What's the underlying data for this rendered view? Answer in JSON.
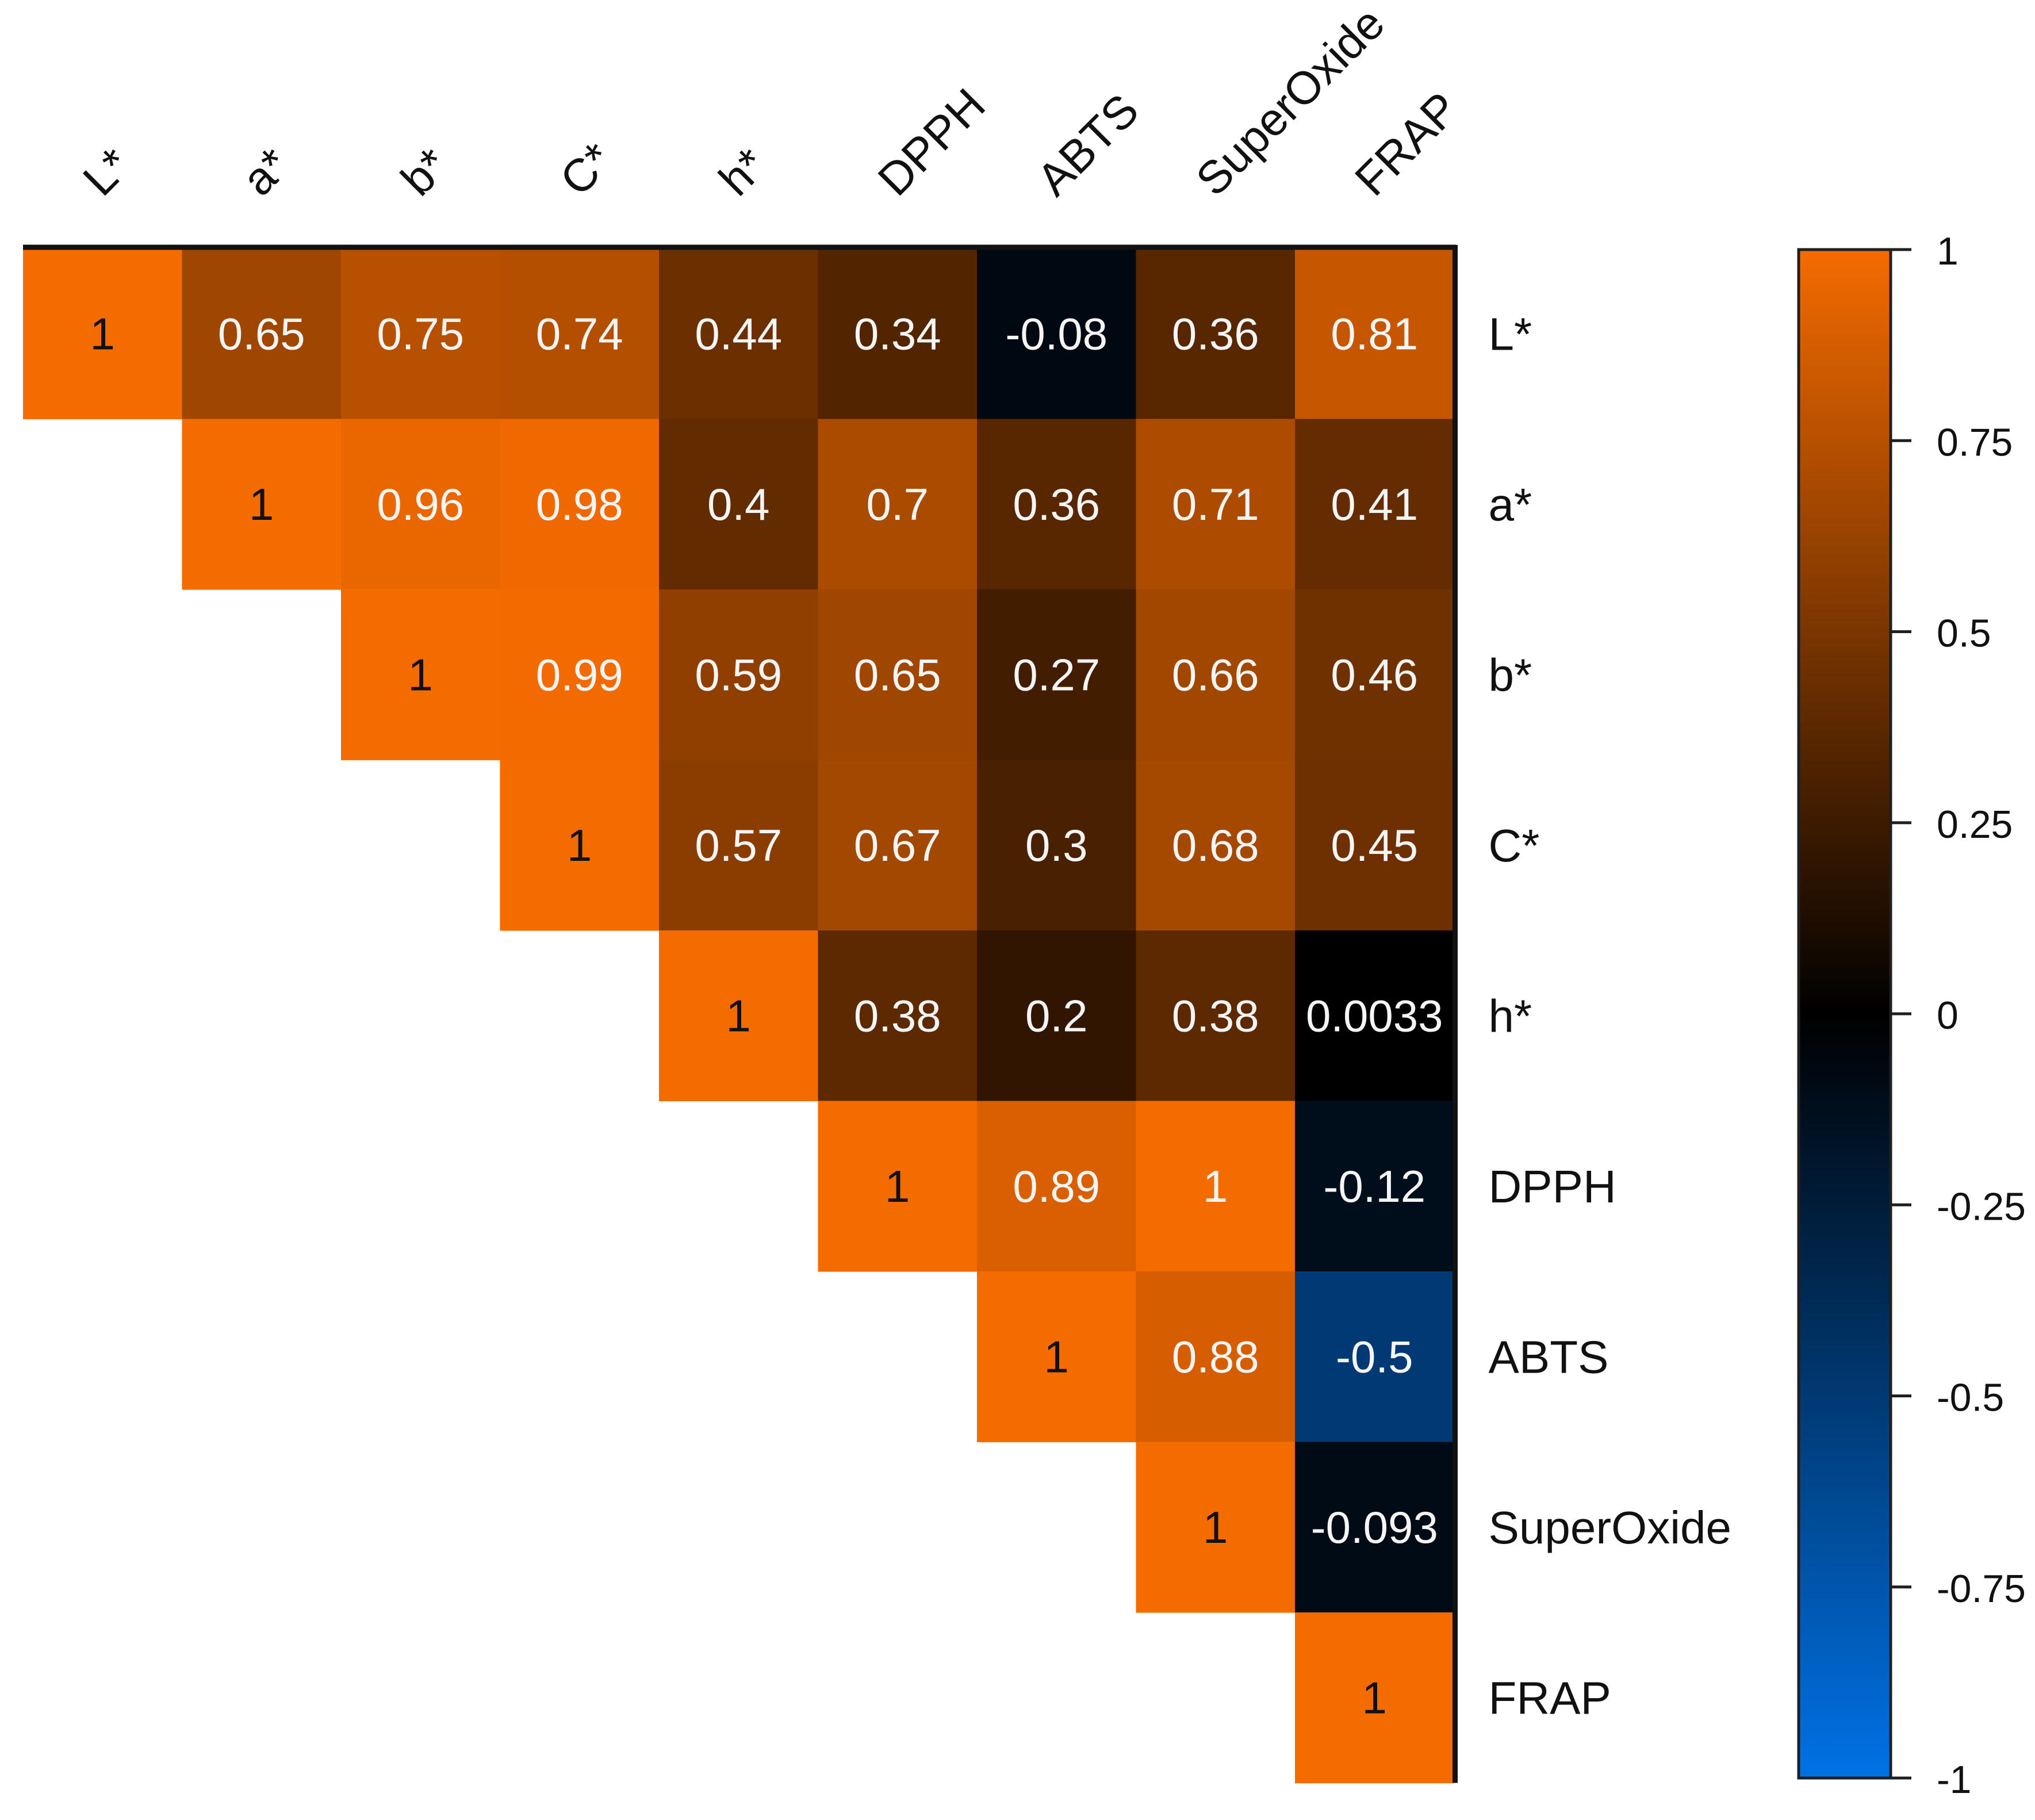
{
  "chart_data": {
    "type": "heatmap",
    "subtype": "correlation-matrix-upper-triangle",
    "variables": [
      "L*",
      "a*",
      "b*",
      "C*",
      "h*",
      "DPPH",
      "ABTS",
      "SuperOxide",
      "FRAP"
    ],
    "matrix": [
      [
        "1",
        "0.65",
        "0.75",
        "0.74",
        "0.44",
        "0.34",
        "-0.08",
        "0.36",
        "0.81"
      ],
      [
        null,
        "1",
        "0.96",
        "0.98",
        "0.4",
        "0.7",
        "0.36",
        "0.71",
        "0.41"
      ],
      [
        null,
        null,
        "1",
        "0.99",
        "0.59",
        "0.65",
        "0.27",
        "0.66",
        "0.46"
      ],
      [
        null,
        null,
        null,
        "1",
        "0.57",
        "0.67",
        "0.3",
        "0.68",
        "0.45"
      ],
      [
        null,
        null,
        null,
        null,
        "1",
        "0.38",
        "0.2",
        "0.38",
        "0.0033"
      ],
      [
        null,
        null,
        null,
        null,
        null,
        "1",
        "0.89",
        "1",
        "-0.12"
      ],
      [
        null,
        null,
        null,
        null,
        null,
        null,
        "1",
        "0.88",
        "-0.5"
      ],
      [
        null,
        null,
        null,
        null,
        null,
        null,
        null,
        "1",
        "-0.093"
      ],
      [
        null,
        null,
        null,
        null,
        null,
        null,
        null,
        null,
        "1"
      ]
    ],
    "color_scale": {
      "min": -1,
      "max": 1,
      "stops": [
        {
          "value": -1,
          "color": "#0072e6"
        },
        {
          "value": 0,
          "color": "#000000"
        },
        {
          "value": 1,
          "color": "#f46b00"
        }
      ],
      "ticks": [
        "1",
        "0.75",
        "0.5",
        "0.25",
        "0",
        "-0.25",
        "-0.5",
        "-0.75",
        "-1"
      ]
    },
    "legend_position": "right",
    "top_labels_rotated": true,
    "row_labels_side": "right"
  }
}
